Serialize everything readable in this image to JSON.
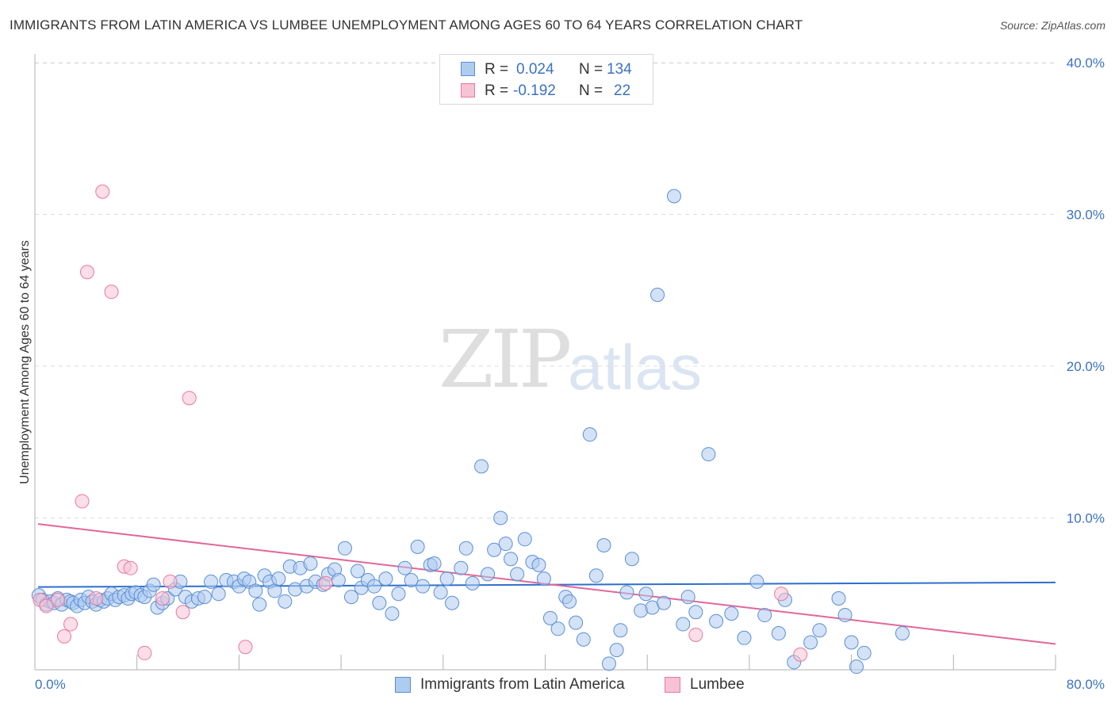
{
  "header": {
    "title": "IMMIGRANTS FROM LATIN AMERICA VS LUMBEE UNEMPLOYMENT AMONG AGES 60 TO 64 YEARS CORRELATION CHART",
    "source": "Source: ZipAtlas.com"
  },
  "watermark": {
    "zip": "ZIP",
    "atlas": "atlas"
  },
  "legend": {
    "r_label": "R =",
    "n_label": "N =",
    "rows": [
      {
        "name": "Immigrants from Latin America",
        "r": "0.024",
        "n": "134",
        "color": "#5b8fd6"
      },
      {
        "name": "Lumbee",
        "r": "-0.192",
        "n": "22",
        "color": "#e8799f"
      }
    ]
  },
  "colors": {
    "blue_fill": "#aecbf0",
    "blue_stroke": "#5b8fd6",
    "blue_line": "#2d6fcc",
    "pink_fill": "#f7c2d3",
    "pink_stroke": "#e8799f",
    "pink_line": "#e0679a",
    "axis_text": "#3a72c4"
  },
  "chart_data": {
    "type": "scatter",
    "title": "IMMIGRANTS FROM LATIN AMERICA VS LUMBEE UNEMPLOYMENT AMONG AGES 60 TO 64 YEARS CORRELATION CHART",
    "xlabel": "",
    "ylabel": "Unemployment Among Ages 60 to 64 years",
    "xlim": [
      0,
      80
    ],
    "ylim": [
      0,
      40
    ],
    "x_tick_labels": [
      "0.0%",
      "80.0%"
    ],
    "y_ticks": [
      10,
      20,
      30,
      40
    ],
    "y_tick_labels": [
      "10.0%",
      "20.0%",
      "30.0%",
      "40.0%"
    ],
    "grid": "horizontal dashed",
    "series": [
      {
        "name": "Immigrants from Latin America",
        "points": [
          [
            0.3,
            4.9
          ],
          [
            0.6,
            4.6
          ],
          [
            0.9,
            4.3
          ],
          [
            1.2,
            4.5
          ],
          [
            1.5,
            4.4
          ],
          [
            1.8,
            4.7
          ],
          [
            2.1,
            4.3
          ],
          [
            2.5,
            4.6
          ],
          [
            2.8,
            4.5
          ],
          [
            3.0,
            4.4
          ],
          [
            3.3,
            4.2
          ],
          [
            3.6,
            4.6
          ],
          [
            3.9,
            4.4
          ],
          [
            4.2,
            4.8
          ],
          [
            4.5,
            4.5
          ],
          [
            4.8,
            4.3
          ],
          [
            5.1,
            4.6
          ],
          [
            5.4,
            4.5
          ],
          [
            5.7,
            4.7
          ],
          [
            6.0,
            5.0
          ],
          [
            6.3,
            4.6
          ],
          [
            6.6,
            4.8
          ],
          [
            7.0,
            4.9
          ],
          [
            7.3,
            4.7
          ],
          [
            7.6,
            5.0
          ],
          [
            7.9,
            5.1
          ],
          [
            8.3,
            4.9
          ],
          [
            8.6,
            4.8
          ],
          [
            9.0,
            5.2
          ],
          [
            9.3,
            5.6
          ],
          [
            9.6,
            4.1
          ],
          [
            10.0,
            4.4
          ],
          [
            10.4,
            4.7
          ],
          [
            11.0,
            5.3
          ],
          [
            11.4,
            5.8
          ],
          [
            11.8,
            4.8
          ],
          [
            12.3,
            4.5
          ],
          [
            12.8,
            4.7
          ],
          [
            13.3,
            4.8
          ],
          [
            13.8,
            5.8
          ],
          [
            14.4,
            5.0
          ],
          [
            15.0,
            5.9
          ],
          [
            15.6,
            5.8
          ],
          [
            16.0,
            5.5
          ],
          [
            16.4,
            6.0
          ],
          [
            16.8,
            5.8
          ],
          [
            17.3,
            5.2
          ],
          [
            17.6,
            4.3
          ],
          [
            18.0,
            6.2
          ],
          [
            18.4,
            5.8
          ],
          [
            18.8,
            5.2
          ],
          [
            19.1,
            6.0
          ],
          [
            19.6,
            4.5
          ],
          [
            20.0,
            6.8
          ],
          [
            20.4,
            5.3
          ],
          [
            20.8,
            6.7
          ],
          [
            21.3,
            5.5
          ],
          [
            21.6,
            7.0
          ],
          [
            22.0,
            5.8
          ],
          [
            22.6,
            5.6
          ],
          [
            23.0,
            6.3
          ],
          [
            23.5,
            6.6
          ],
          [
            23.8,
            5.9
          ],
          [
            24.3,
            8.0
          ],
          [
            24.8,
            4.8
          ],
          [
            25.3,
            6.5
          ],
          [
            25.6,
            5.4
          ],
          [
            26.1,
            5.9
          ],
          [
            26.6,
            5.5
          ],
          [
            27.0,
            4.4
          ],
          [
            27.5,
            6.0
          ],
          [
            28.0,
            3.7
          ],
          [
            28.5,
            5.0
          ],
          [
            29.0,
            6.7
          ],
          [
            29.5,
            5.9
          ],
          [
            30.0,
            8.1
          ],
          [
            30.4,
            5.5
          ],
          [
            31.0,
            6.9
          ],
          [
            31.3,
            7.0
          ],
          [
            31.8,
            5.1
          ],
          [
            32.3,
            6.0
          ],
          [
            32.7,
            4.4
          ],
          [
            33.4,
            6.7
          ],
          [
            33.8,
            8.0
          ],
          [
            34.3,
            5.7
          ],
          [
            35.0,
            13.4
          ],
          [
            35.5,
            6.3
          ],
          [
            36.0,
            7.9
          ],
          [
            36.5,
            10.0
          ],
          [
            36.9,
            8.3
          ],
          [
            37.3,
            7.3
          ],
          [
            37.8,
            6.3
          ],
          [
            38.4,
            8.6
          ],
          [
            39.0,
            7.1
          ],
          [
            39.5,
            6.9
          ],
          [
            39.9,
            6.0
          ],
          [
            40.4,
            3.4
          ],
          [
            41.0,
            2.7
          ],
          [
            41.6,
            4.8
          ],
          [
            41.9,
            4.5
          ],
          [
            42.4,
            3.1
          ],
          [
            43.0,
            2.0
          ],
          [
            43.5,
            15.5
          ],
          [
            44.0,
            6.2
          ],
          [
            44.6,
            8.2
          ],
          [
            45.0,
            0.4
          ],
          [
            45.6,
            1.3
          ],
          [
            45.9,
            2.6
          ],
          [
            46.4,
            5.1
          ],
          [
            46.8,
            7.3
          ],
          [
            47.5,
            3.9
          ],
          [
            47.9,
            5.0
          ],
          [
            48.4,
            4.1
          ],
          [
            48.8,
            24.7
          ],
          [
            49.3,
            4.4
          ],
          [
            50.1,
            31.2
          ],
          [
            50.8,
            3.0
          ],
          [
            51.2,
            4.8
          ],
          [
            51.8,
            3.8
          ],
          [
            52.8,
            14.2
          ],
          [
            53.4,
            3.2
          ],
          [
            54.6,
            3.7
          ],
          [
            55.6,
            2.1
          ],
          [
            56.6,
            5.8
          ],
          [
            57.2,
            3.6
          ],
          [
            58.3,
            2.4
          ],
          [
            58.8,
            4.6
          ],
          [
            59.5,
            0.5
          ],
          [
            60.8,
            1.8
          ],
          [
            61.5,
            2.6
          ],
          [
            63.0,
            4.7
          ],
          [
            63.5,
            3.6
          ],
          [
            64.0,
            1.8
          ],
          [
            64.4,
            0.2
          ],
          [
            65.0,
            1.1
          ],
          [
            68.0,
            2.4
          ]
        ]
      },
      {
        "name": "Lumbee",
        "points": [
          [
            0.4,
            4.6
          ],
          [
            0.9,
            4.2
          ],
          [
            1.8,
            4.6
          ],
          [
            2.3,
            2.2
          ],
          [
            2.8,
            3.0
          ],
          [
            3.7,
            11.1
          ],
          [
            4.1,
            26.2
          ],
          [
            4.8,
            4.7
          ],
          [
            5.3,
            31.5
          ],
          [
            6.0,
            24.9
          ],
          [
            7.0,
            6.8
          ],
          [
            7.5,
            6.7
          ],
          [
            8.6,
            1.1
          ],
          [
            10.0,
            4.7
          ],
          [
            10.6,
            5.8
          ],
          [
            11.6,
            3.8
          ],
          [
            12.1,
            17.9
          ],
          [
            16.5,
            1.5
          ],
          [
            22.8,
            5.7
          ],
          [
            51.8,
            2.3
          ],
          [
            58.5,
            5.0
          ],
          [
            60.0,
            1.0
          ]
        ]
      }
    ],
    "trendlines": [
      {
        "series": "Immigrants from Latin America",
        "x": [
          0,
          80
        ],
        "y": [
          5.45,
          5.75
        ]
      },
      {
        "series": "Lumbee",
        "x": [
          0,
          80
        ],
        "y": [
          9.6,
          1.7
        ]
      }
    ]
  }
}
